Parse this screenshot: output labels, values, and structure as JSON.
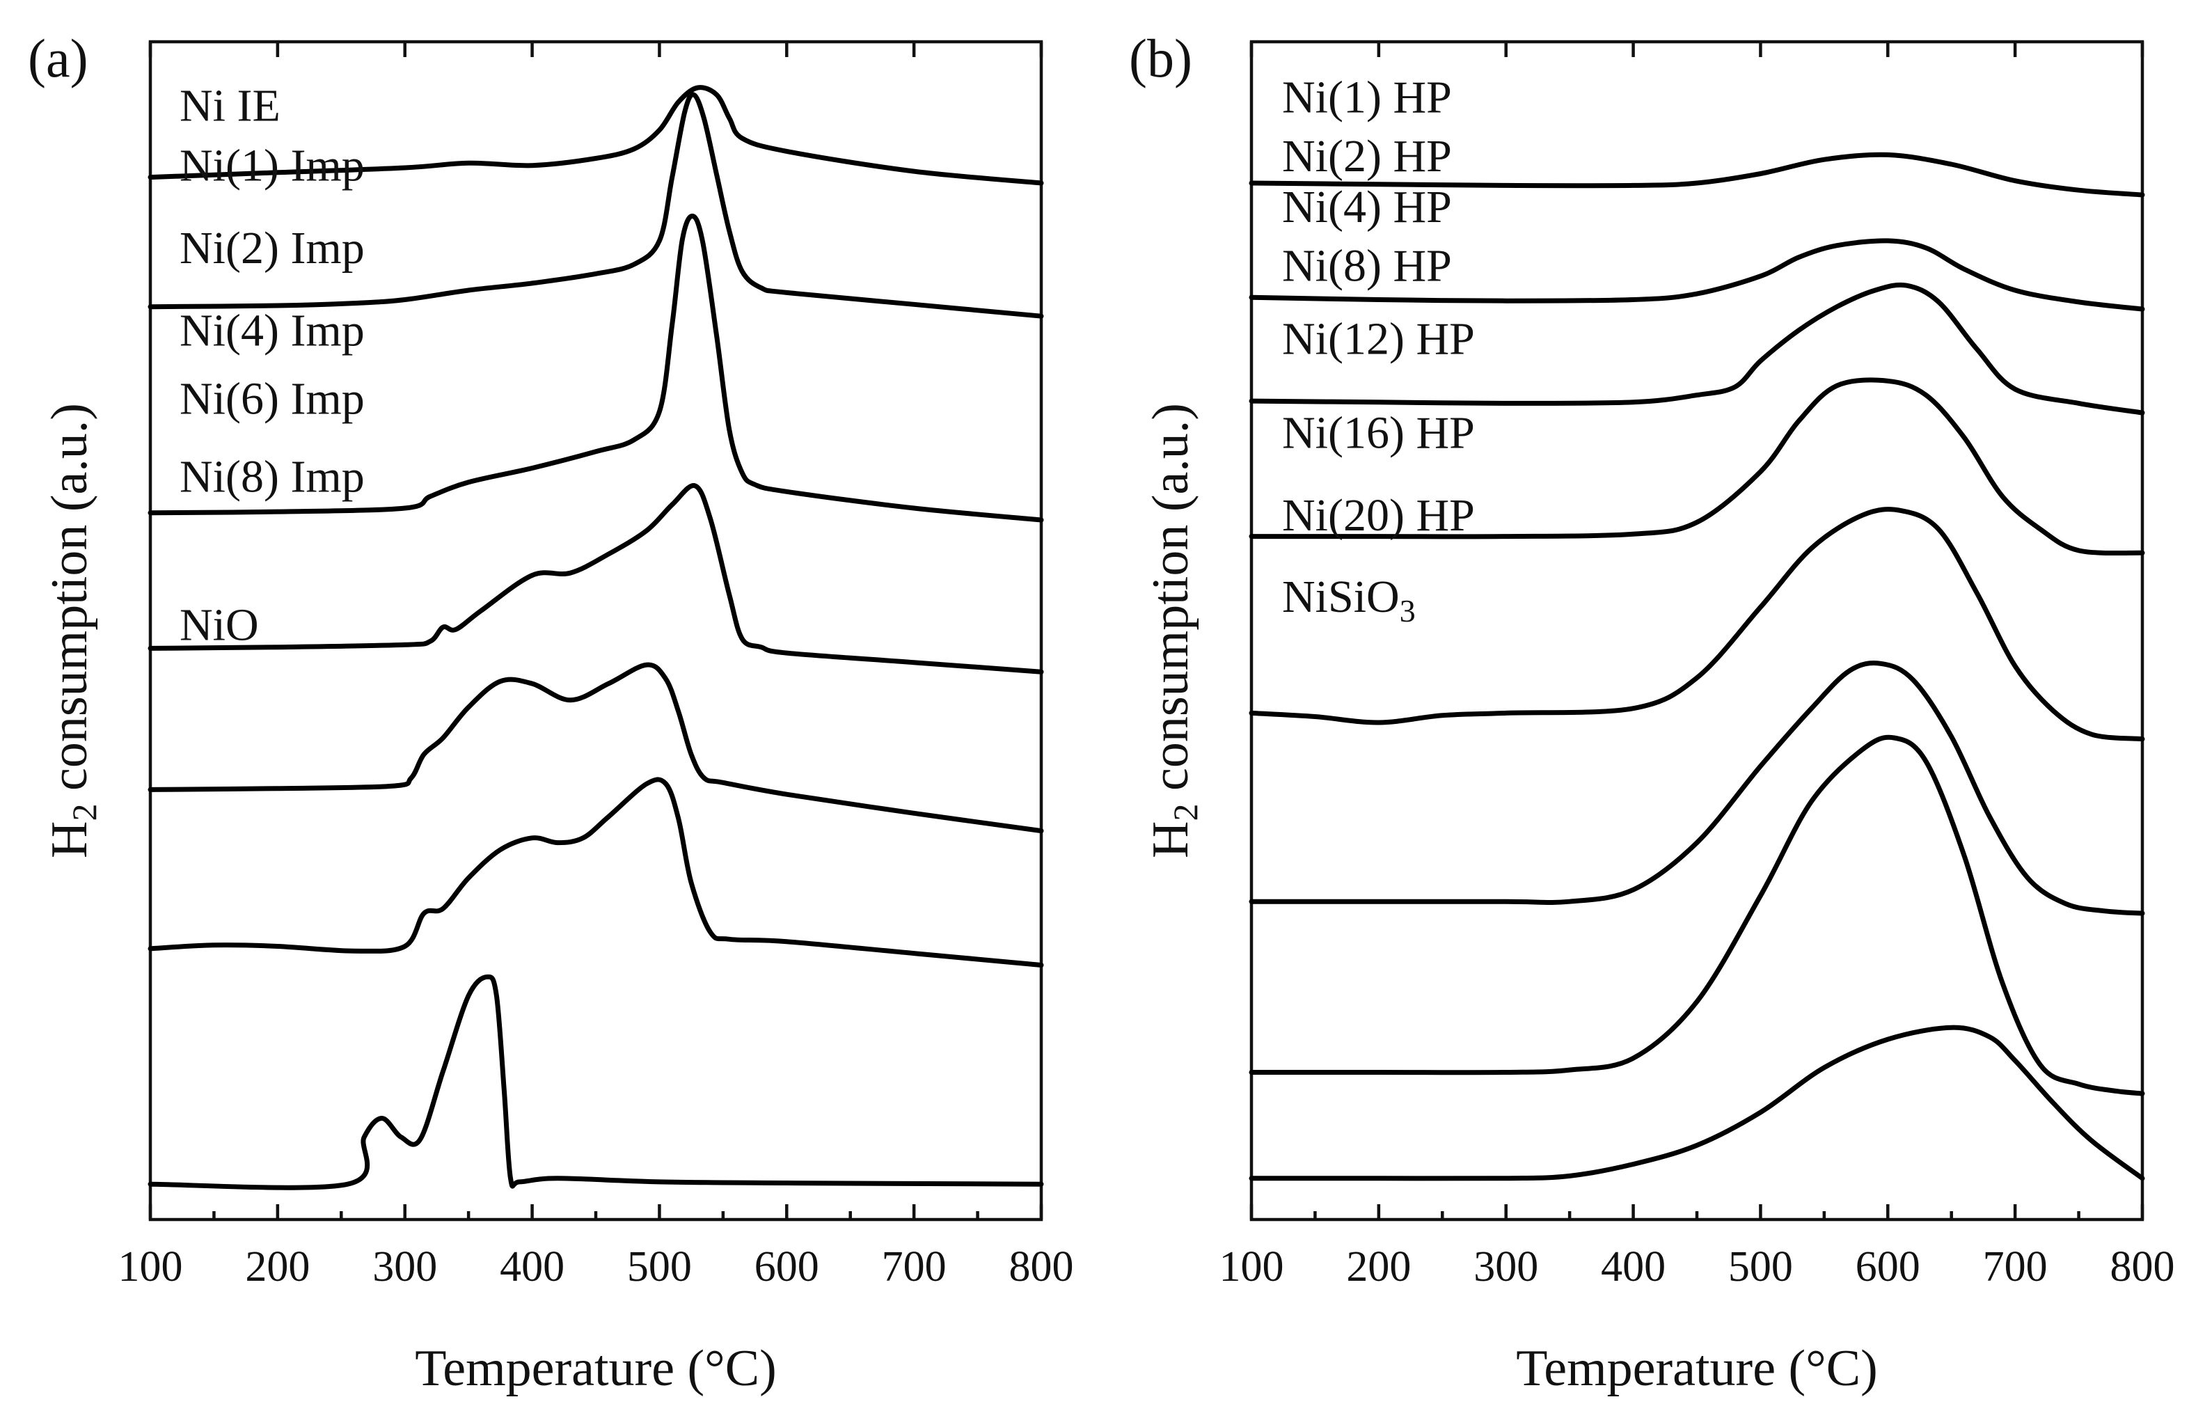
{
  "chart_data": [
    {
      "panel_label": "(a)",
      "type": "line",
      "title": "",
      "xlabel": "Temperature (°C)",
      "ylabel": {
        "main": "H",
        "sub": "2",
        "rest": " consumption (a.u.)"
      },
      "xlim": [
        100,
        800
      ],
      "xticks": [
        100,
        200,
        300,
        400,
        500,
        600,
        700,
        800
      ],
      "series": [
        {
          "name": "Ni IE",
          "label_parts": [
            {
              "t": "Ni IE"
            }
          ],
          "baseline": 0.885,
          "x": [
            100,
            200,
            300,
            350,
            400,
            450,
            480,
            500,
            515,
            530,
            545,
            555,
            565,
            600,
            700,
            800
          ],
          "y": [
            0,
            0.004,
            0.008,
            0.012,
            0.01,
            0.016,
            0.024,
            0.04,
            0.064,
            0.076,
            0.07,
            0.05,
            0.033,
            0.022,
            0.005,
            -0.005
          ]
        },
        {
          "name": "Ni(1) Imp",
          "label_parts": [
            {
              "t": "Ni(1) Imp"
            }
          ],
          "baseline": 0.775,
          "x": [
            100,
            200,
            260,
            300,
            350,
            400,
            450,
            480,
            500,
            510,
            520,
            527,
            535,
            545,
            555,
            565,
            580,
            600,
            700,
            800
          ],
          "y": [
            0,
            0.001,
            0.003,
            0.006,
            0.014,
            0.02,
            0.028,
            0.036,
            0.056,
            0.11,
            0.166,
            0.18,
            0.16,
            0.112,
            0.064,
            0.03,
            0.016,
            0.012,
            0.002,
            -0.008
          ]
        },
        {
          "name": "Ni(2) Imp",
          "label_parts": [
            {
              "t": "Ni(2) Imp"
            }
          ],
          "baseline": 0.6,
          "x": [
            100,
            200,
            300,
            320,
            350,
            400,
            450,
            480,
            500,
            510,
            518,
            526,
            534,
            545,
            555,
            565,
            575,
            600,
            700,
            800
          ],
          "y": [
            0,
            0.001,
            0.004,
            0.014,
            0.026,
            0.038,
            0.052,
            0.062,
            0.086,
            0.16,
            0.232,
            0.252,
            0.23,
            0.15,
            0.07,
            0.034,
            0.024,
            0.018,
            0.004,
            -0.006
          ]
        },
        {
          "name": "Ni(4) Imp",
          "label_parts": [
            {
              "t": "Ni(4) Imp"
            }
          ],
          "baseline": 0.485,
          "x": [
            100,
            200,
            300,
            320,
            330,
            340,
            360,
            400,
            430,
            460,
            490,
            510,
            528,
            540,
            555,
            565,
            580,
            600,
            700,
            800
          ],
          "y": [
            0,
            0.001,
            0.003,
            0.006,
            0.018,
            0.016,
            0.032,
            0.062,
            0.064,
            0.08,
            0.1,
            0.122,
            0.138,
            0.11,
            0.045,
            0.008,
            0.001,
            -0.004,
            -0.012,
            -0.02
          ]
        },
        {
          "name": "Ni(6) Imp",
          "label_parts": [
            {
              "t": "Ni(6) Imp"
            }
          ],
          "baseline": 0.365,
          "x": [
            100,
            200,
            290,
            305,
            315,
            330,
            350,
            375,
            400,
            430,
            460,
            490,
            505,
            515,
            525,
            535,
            550,
            600,
            700,
            800
          ],
          "y": [
            0,
            0.001,
            0.003,
            0.01,
            0.03,
            0.044,
            0.07,
            0.092,
            0.09,
            0.076,
            0.09,
            0.106,
            0.094,
            0.066,
            0.03,
            0.01,
            0.006,
            -0.004,
            -0.02,
            -0.035
          ]
        },
        {
          "name": "Ni(8) Imp",
          "label_parts": [
            {
              "t": "Ni(8) Imp"
            }
          ],
          "baseline": 0.23,
          "x": [
            100,
            150,
            200,
            260,
            300,
            315,
            330,
            350,
            375,
            400,
            420,
            440,
            460,
            490,
            505,
            515,
            525,
            540,
            555,
            600,
            700,
            800
          ],
          "y": [
            0,
            0.003,
            0.002,
            -0.002,
            0.002,
            0.03,
            0.034,
            0.06,
            0.084,
            0.094,
            0.09,
            0.094,
            0.112,
            0.14,
            0.14,
            0.11,
            0.056,
            0.014,
            0.008,
            0.006,
            -0.004,
            -0.014
          ]
        },
        {
          "name": "NiO",
          "label_parts": [
            {
              "t": "NiO"
            }
          ],
          "baseline": 0.03,
          "x": [
            100,
            255,
            268,
            282,
            297,
            312,
            330,
            350,
            365,
            372,
            378,
            383,
            390,
            420,
            500,
            600,
            800
          ],
          "y": [
            0,
            0,
            0.04,
            0.056,
            0.04,
            0.038,
            0.096,
            0.16,
            0.176,
            0.16,
            0.08,
            0.005,
            0.002,
            0.005,
            0.002,
            0.001,
            0
          ]
        }
      ]
    },
    {
      "panel_label": "(b)",
      "type": "line",
      "title": "",
      "xlabel": "Temperature (°C)",
      "ylabel": {
        "main": "H",
        "sub": "2",
        "rest": " consumption (a.u.)"
      },
      "xlim": [
        100,
        800
      ],
      "xticks": [
        100,
        200,
        300,
        400,
        500,
        600,
        700,
        800
      ],
      "series": [
        {
          "name": "Ni(1) HP",
          "label_parts": [
            {
              "t": "Ni(1) HP"
            }
          ],
          "baseline": 0.88,
          "x": [
            100,
            200,
            300,
            400,
            450,
            500,
            550,
            600,
            650,
            700,
            750,
            800
          ],
          "y": [
            0,
            -0.001,
            -0.002,
            -0.002,
            0.0,
            0.008,
            0.02,
            0.024,
            0.016,
            0.002,
            -0.006,
            -0.01
          ]
        },
        {
          "name": "Ni(2) HP",
          "label_parts": [
            {
              "t": "Ni(2) HP"
            }
          ],
          "baseline": 0.783,
          "x": [
            100,
            200,
            300,
            400,
            450,
            500,
            530,
            560,
            600,
            630,
            660,
            700,
            750,
            800
          ],
          "y": [
            0,
            -0.002,
            -0.003,
            -0.002,
            0.003,
            0.018,
            0.034,
            0.044,
            0.048,
            0.042,
            0.024,
            0.006,
            -0.004,
            -0.01
          ]
        },
        {
          "name": "Ni(4) HP",
          "label_parts": [
            {
              "t": "Ni(4) HP"
            }
          ],
          "baseline": 0.695,
          "x": [
            100,
            200,
            300,
            400,
            450,
            480,
            500,
            530,
            560,
            590,
            615,
            640,
            670,
            700,
            750,
            800
          ],
          "y": [
            0,
            -0.001,
            -0.002,
            -0.001,
            0.005,
            0.012,
            0.034,
            0.06,
            0.08,
            0.094,
            0.098,
            0.084,
            0.044,
            0.01,
            -0.002,
            -0.01
          ]
        },
        {
          "name": "Ni(8) HP",
          "label_parts": [
            {
              "t": "Ni(8) HP"
            }
          ],
          "baseline": 0.58,
          "x": [
            100,
            200,
            300,
            400,
            450,
            500,
            530,
            560,
            600,
            630,
            660,
            690,
            720,
            750,
            800
          ],
          "y": [
            0,
            0,
            0,
            0.002,
            0.012,
            0.055,
            0.098,
            0.128,
            0.132,
            0.12,
            0.084,
            0.034,
            0.006,
            -0.012,
            -0.014
          ]
        },
        {
          "name": "Ni(12) HP",
          "label_parts": [
            {
              "t": "Ni(12) HP"
            }
          ],
          "baseline": 0.43,
          "x": [
            100,
            150,
            200,
            250,
            300,
            400,
            450,
            500,
            540,
            580,
            610,
            640,
            670,
            700,
            730,
            760,
            800
          ],
          "y": [
            0,
            -0.003,
            -0.008,
            -0.002,
            0,
            0.004,
            0.03,
            0.09,
            0.14,
            0.168,
            0.172,
            0.156,
            0.102,
            0.04,
            0.002,
            -0.018,
            -0.022
          ]
        },
        {
          "name": "Ni(16) HP",
          "label_parts": [
            {
              "t": "Ni(16) HP"
            }
          ],
          "baseline": 0.27,
          "x": [
            100,
            200,
            300,
            350,
            400,
            450,
            500,
            540,
            570,
            595,
            620,
            650,
            680,
            710,
            740,
            770,
            800
          ],
          "y": [
            0,
            0,
            0,
            0,
            0.01,
            0.05,
            0.115,
            0.164,
            0.196,
            0.202,
            0.188,
            0.14,
            0.072,
            0.02,
            -0.002,
            -0.008,
            -0.01
          ]
        },
        {
          "name": "Ni(20) HP",
          "label_parts": [
            {
              "t": "Ni(20) HP"
            }
          ],
          "baseline": 0.125,
          "x": [
            100,
            200,
            300,
            350,
            400,
            450,
            500,
            540,
            580,
            605,
            630,
            660,
            690,
            720,
            750,
            780,
            800
          ],
          "y": [
            0,
            0,
            0,
            0.002,
            0.012,
            0.06,
            0.15,
            0.23,
            0.274,
            0.284,
            0.264,
            0.184,
            0.076,
            0.006,
            -0.01,
            -0.016,
            -0.018
          ]
        },
        {
          "name": "NiSiO3",
          "label_parts": [
            {
              "t": "NiSiO"
            },
            {
              "t": "3",
              "sub": true
            }
          ],
          "baseline": 0.035,
          "x": [
            100,
            200,
            300,
            350,
            400,
            450,
            500,
            550,
            600,
            650,
            680,
            700,
            730,
            760,
            800
          ],
          "y": [
            0,
            0,
            0,
            0.002,
            0.012,
            0.028,
            0.056,
            0.094,
            0.118,
            0.128,
            0.12,
            0.1,
            0.064,
            0.032,
            0.0
          ]
        }
      ]
    }
  ]
}
